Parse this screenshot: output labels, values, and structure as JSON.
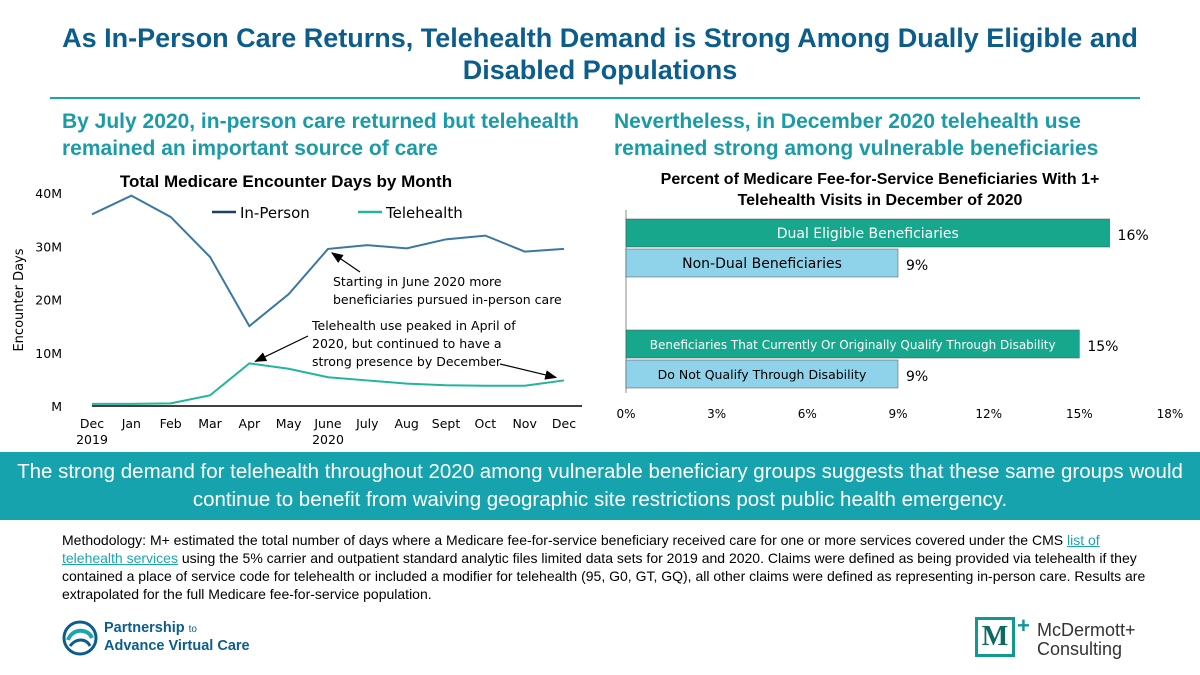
{
  "title": "As In-Person Care Returns, Telehealth Demand is Strong Among Dually Eligible and Disabled Populations",
  "left_subtitle": "By July 2020, in-person care returned but telehealth remained an important source of care",
  "right_subtitle": "Nevertheless, in December 2020 telehealth use remained strong among vulnerable beneficiaries",
  "banner": "The strong demand for telehealth throughout 2020 among vulnerable beneficiary groups suggests that these same groups would continue to benefit from waiving geographic site restrictions post public health emergency.",
  "methodology": {
    "before_link": "Methodology: M+ estimated the total number of days where a Medicare fee-for-service beneficiary received care for one or more services covered under the CMS ",
    "link": "list of telehealth services",
    "after_link": " using the 5% carrier and outpatient standard analytic files limited data sets for 2019 and 2020. Claims were defined as being provided via telehealth if they contained a place of service code for telehealth or included a modifier for telehealth (95, G0, GT, GQ), all other claims were defined as representing in-person care. Results are extrapolated for the full Medicare fee-for-service population."
  },
  "logos": {
    "pavc_line1": "Partnership",
    "pavc_to": "to",
    "pavc_line2": "Advance Virtual Care",
    "mplus_mark": "M",
    "mplus_plus": "+",
    "mplus_line1": "McDermott+",
    "mplus_line2": "Consulting"
  },
  "colors": {
    "in_person": "#3b77a3",
    "telehealth": "#22b59a",
    "dual_bar": "#16a78d",
    "light_bar": "#8fd3ea",
    "title": "#0b5d8c",
    "accent": "#17a3ad"
  },
  "chart_data": [
    {
      "type": "line",
      "title": "Total Medicare Encounter Days by Month",
      "ylabel": "Encounter Days",
      "xlabel": "",
      "categories": [
        "Dec",
        "Jan",
        "Feb",
        "Mar",
        "Apr",
        "May",
        "June",
        "July",
        "Aug",
        "Sept",
        "Oct",
        "Nov",
        "Dec"
      ],
      "category_sublabels": [
        "2019",
        "",
        "",
        "",
        "",
        "",
        "2020",
        "",
        "",
        "",
        "",
        "",
        ""
      ],
      "ylim": [
        0,
        40
      ],
      "yticks": [
        0,
        10,
        20,
        30,
        40
      ],
      "ytick_labels": [
        "M",
        "10M",
        "20M",
        "30M",
        "40M"
      ],
      "legend_position": "top",
      "grid": false,
      "series": [
        {
          "name": "In-Person",
          "values": [
            36,
            39.5,
            35.5,
            28,
            15,
            21,
            29.5,
            30.2,
            29.6,
            31.3,
            32,
            29,
            29.5
          ]
        },
        {
          "name": "Telehealth",
          "values": [
            0.4,
            0.4,
            0.5,
            2,
            8,
            7,
            5.4,
            4.8,
            4.2,
            3.9,
            3.8,
            3.8,
            4.8
          ]
        }
      ],
      "annotations": [
        {
          "text_lines": [
            "Starting in June 2020 more",
            "beneficiaries pursued in-person care"
          ]
        },
        {
          "text_lines": [
            "Telehealth use peaked in April of",
            "2020, but continued to have a",
            "strong presence by December"
          ]
        }
      ]
    },
    {
      "type": "bar",
      "orientation": "horizontal",
      "title_lines": [
        "Percent of Medicare Fee-for-Service Beneficiaries With 1+",
        "Telehealth Visits in December of 2020"
      ],
      "categories": [
        "Dual Eligible Beneficiaries",
        "Non-Dual Beneficiaries",
        "Beneficiaries That Currently Or Originally Qualify Through Disability",
        "Do Not Qualify Through Disability"
      ],
      "values": [
        16,
        9,
        15,
        9
      ],
      "value_labels": [
        "16%",
        "9%",
        "15%",
        "9%"
      ],
      "xlim": [
        0,
        18
      ],
      "xticks": [
        0,
        3,
        6,
        9,
        12,
        15,
        18
      ],
      "xtick_labels": [
        "0%",
        "3%",
        "6%",
        "9%",
        "12%",
        "15%",
        "18%"
      ],
      "grid": false
    }
  ]
}
